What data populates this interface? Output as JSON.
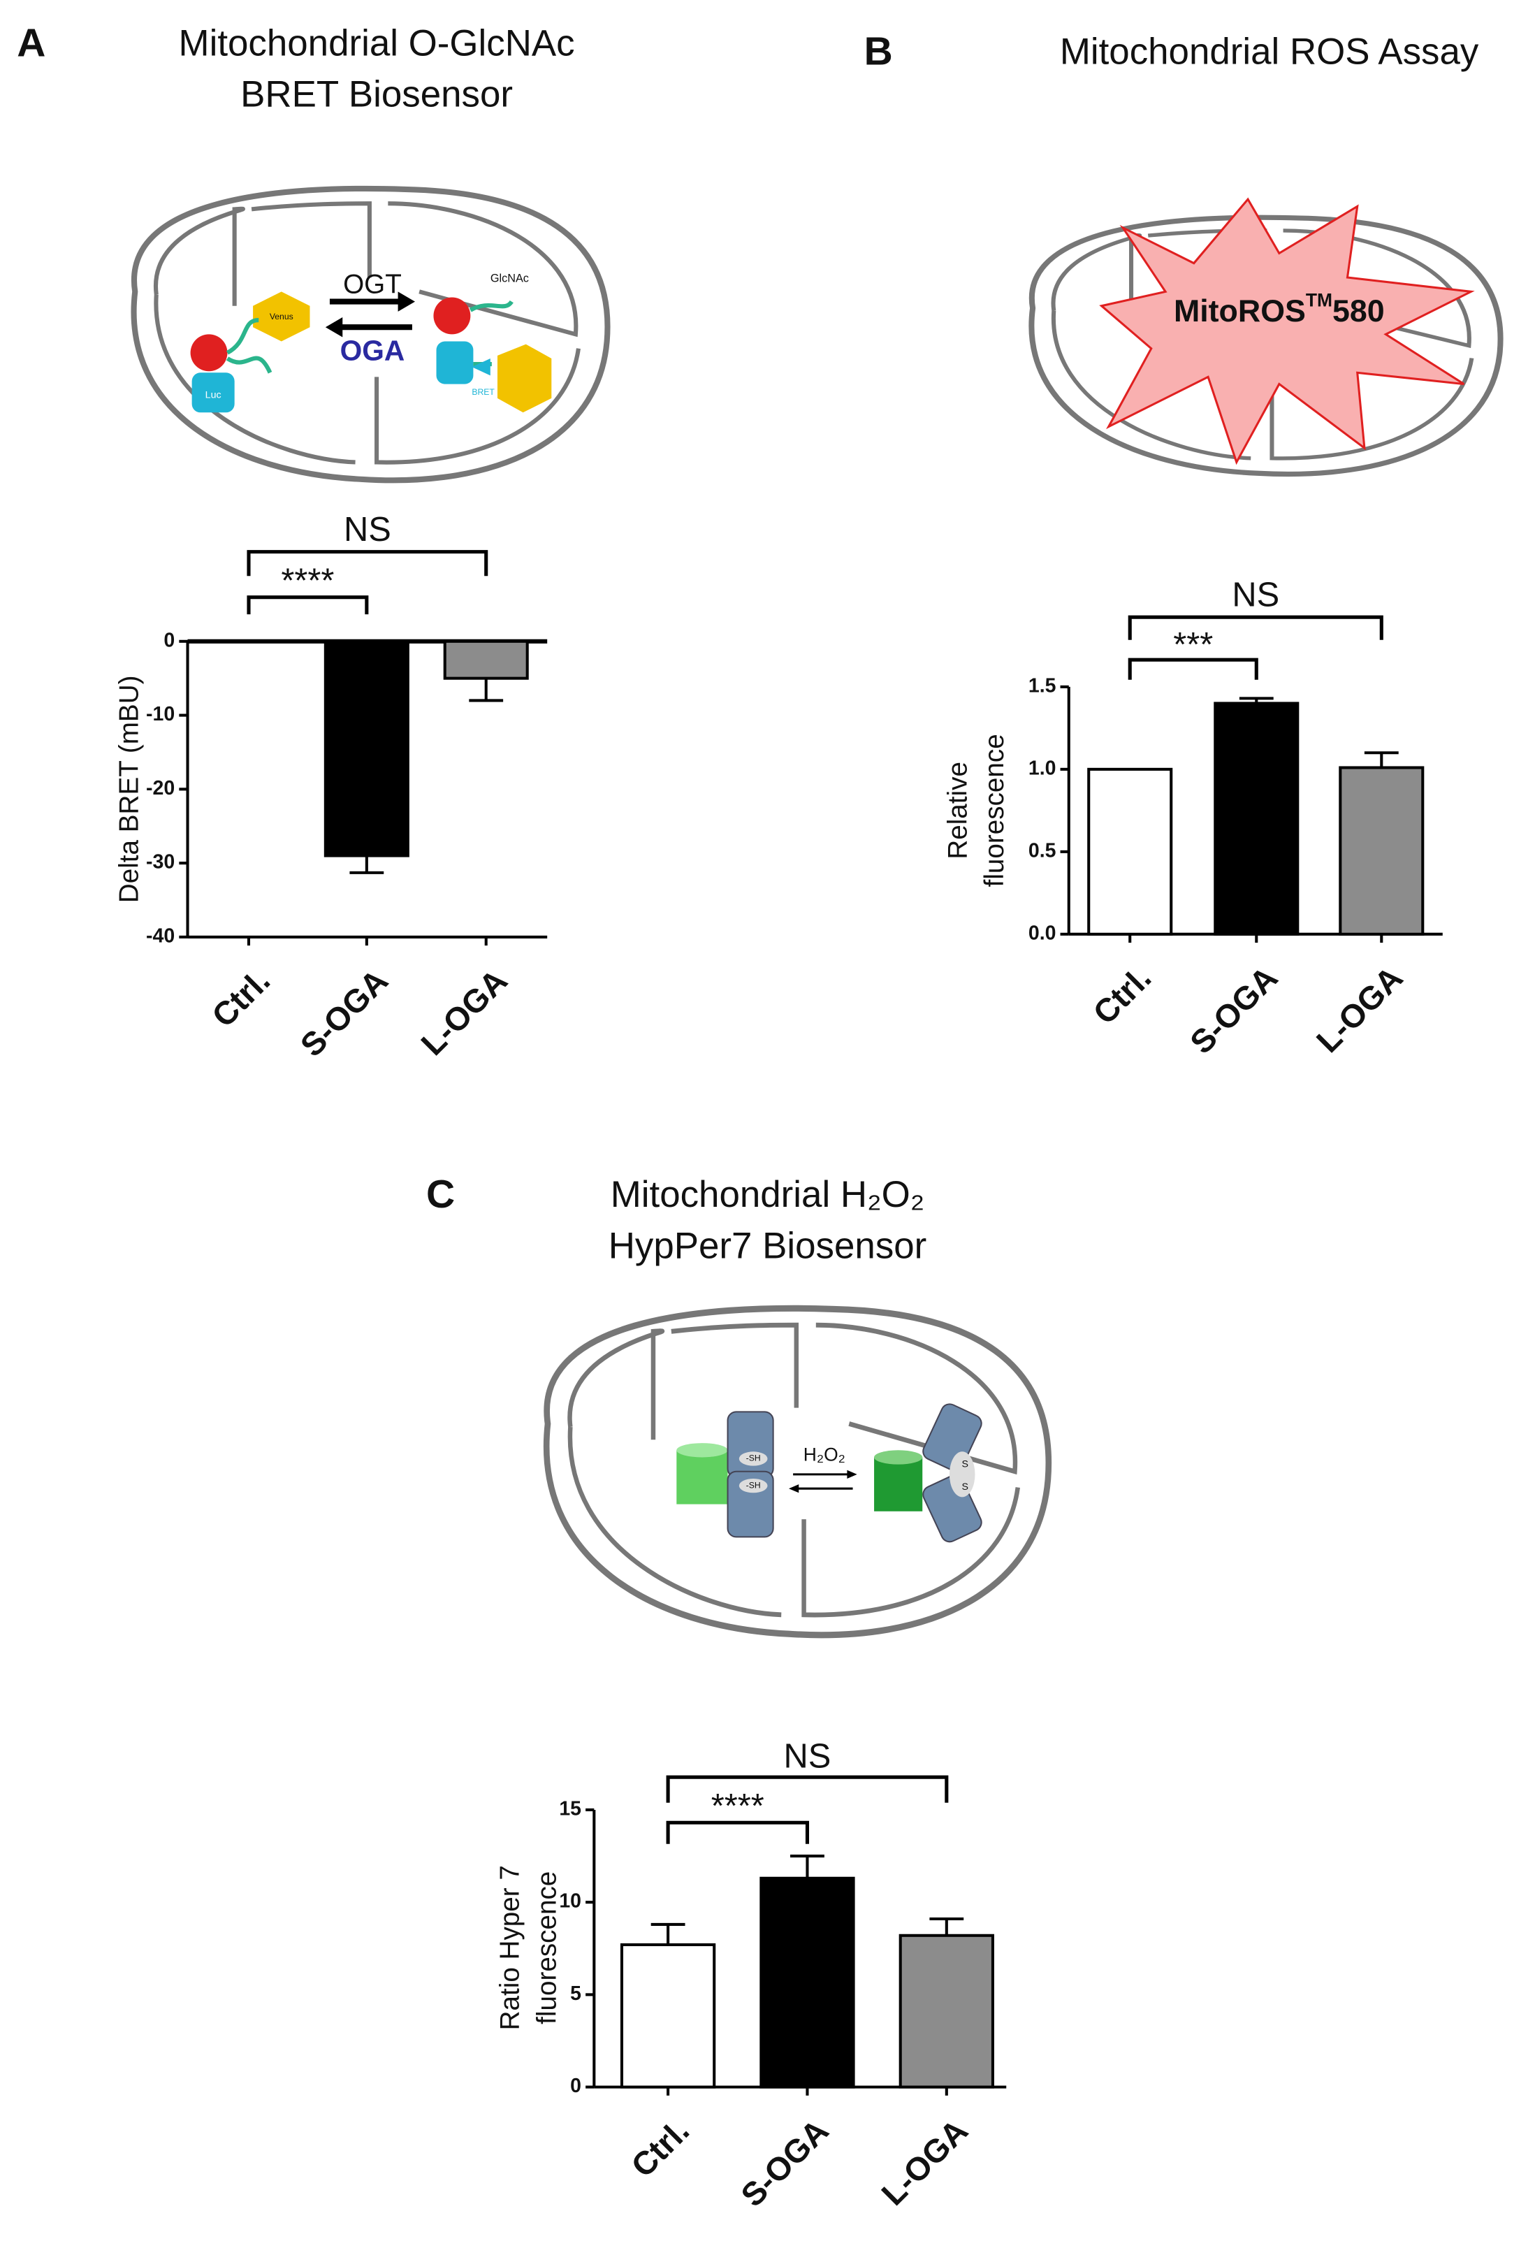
{
  "chart_data": [
    {
      "type": "bar",
      "panel": "A",
      "title_lines": [
        "Mitochondrial O-GlcNAc",
        "BRET Biosensor"
      ],
      "ylabel_lines": [
        "Delta BRET (mBU)"
      ],
      "categories": [
        "Ctrl.",
        "S-OGA",
        "L-OGA"
      ],
      "values": [
        0,
        -29,
        -5
      ],
      "errors": [
        null,
        2.3,
        3
      ],
      "colors": [
        "#ffffff",
        "#000000",
        "#8c8c8c"
      ],
      "ylim": [
        -40,
        0
      ],
      "yticks": [
        0,
        -10,
        -20,
        -30,
        -40
      ],
      "brackets": [
        {
          "label": "NS",
          "categories": [
            0,
            2
          ]
        },
        {
          "label": "****",
          "categories": [
            0,
            1
          ]
        }
      ],
      "diagram_labels": [
        "OGT",
        "OGA",
        "Venus",
        "Luc",
        "GlcNAc",
        "BRET"
      ]
    },
    {
      "type": "bar",
      "panel": "B",
      "title_lines": [
        "Mitochondrial ROS Assay"
      ],
      "ylabel_lines": [
        "Relative",
        "fluorescence"
      ],
      "categories": [
        "Ctrl.",
        "S-OGA",
        "L-OGA"
      ],
      "values": [
        1.0,
        1.4,
        1.01
      ],
      "errors": [
        null,
        0.03,
        0.09
      ],
      "colors": [
        "#ffffff",
        "#000000",
        "#8c8c8c"
      ],
      "ylim": [
        0,
        1.5
      ],
      "yticks": [
        {
          "value": 0,
          "label": "0.0"
        },
        {
          "value": 0.5,
          "label": "0.5"
        },
        {
          "value": 1,
          "label": "1.0"
        },
        {
          "value": 1.5,
          "label": "1.5"
        }
      ],
      "brackets": [
        {
          "label": "NS",
          "categories": [
            0,
            2
          ]
        },
        {
          "label": "***",
          "categories": [
            0,
            1
          ]
        }
      ],
      "diagram_labels": [
        "MitoROS",
        "TM",
        "580"
      ]
    },
    {
      "type": "bar",
      "panel": "C",
      "title_lines": [
        "Mitochondrial H₂O₂",
        "HypPer7 Biosensor"
      ],
      "ylabel_lines": [
        "Ratio Hyper 7",
        "fluorescence"
      ],
      "categories": [
        "Ctrl.",
        "S-OGA",
        "L-OGA"
      ],
      "values": [
        7.7,
        11.3,
        8.2
      ],
      "errors": [
        1.1,
        1.2,
        0.9
      ],
      "colors": [
        "#ffffff",
        "#000000",
        "#8c8c8c"
      ],
      "ylim": [
        0,
        15
      ],
      "yticks": [
        0,
        5,
        10,
        15
      ],
      "brackets": [
        {
          "label": "NS",
          "categories": [
            0,
            2
          ]
        },
        {
          "label": "****",
          "categories": [
            0,
            1
          ]
        }
      ],
      "diagram_labels": [
        "H₂O₂",
        "-SH",
        "-SH",
        "S",
        "S"
      ]
    }
  ]
}
